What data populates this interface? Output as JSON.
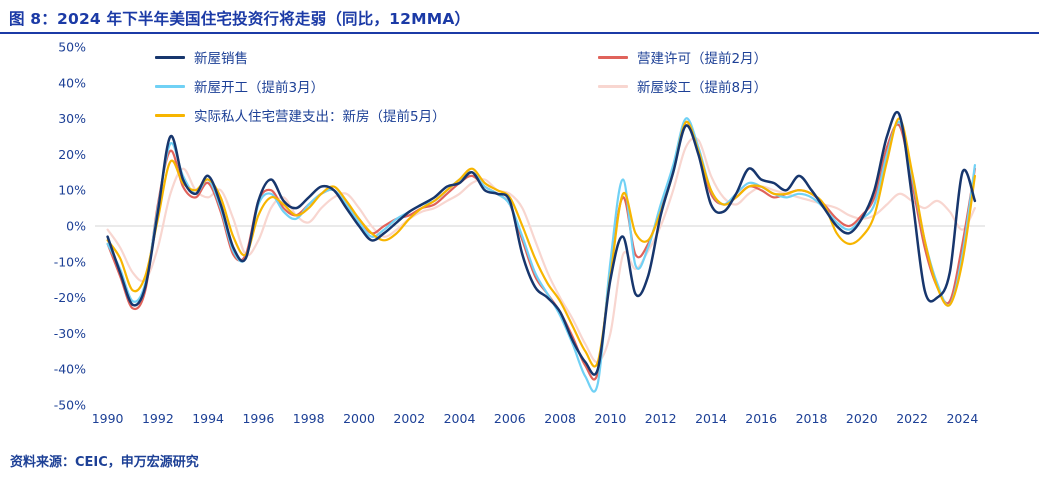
{
  "title": "图 8：2024 年下半年美国住宅投资行将走弱（同比，12MMA）",
  "source": "资料来源：CEIC，申万宏源研究",
  "colors": {
    "title_blue": "#1b3aa6",
    "text_blue": "#1d4096",
    "zero_line": "#d6d6d6",
    "background": "#ffffff"
  },
  "chart_data": {
    "type": "line",
    "title": "2024 年下半年美国住宅投资行将走弱（同比，12MMA）",
    "xlabel": "",
    "ylabel": "",
    "unit": "%",
    "y_tick_suffix": "%",
    "ylim": [
      -50,
      50
    ],
    "y_tick_step": 10,
    "grid": false,
    "zero_line": true,
    "legend_position": "top",
    "x_ticks": [
      1990,
      1992,
      1994,
      1996,
      1998,
      2000,
      2002,
      2004,
      2006,
      2008,
      2010,
      2012,
      2014,
      2016,
      2018,
      2020,
      2022,
      2024
    ],
    "x": [
      1990,
      1990.5,
      1991,
      1991.5,
      1992,
      1992.5,
      1993,
      1993.5,
      1994,
      1994.5,
      1995,
      1995.5,
      1996,
      1996.5,
      1997,
      1997.5,
      1998,
      1998.5,
      1999,
      1999.5,
      2000,
      2000.5,
      2001,
      2001.5,
      2002,
      2002.5,
      2003,
      2003.5,
      2004,
      2004.5,
      2005,
      2005.5,
      2006,
      2006.5,
      2007,
      2007.5,
      2008,
      2008.5,
      2009,
      2009.5,
      2010,
      2010.5,
      2011,
      2011.5,
      2012,
      2012.5,
      2013,
      2013.5,
      2014,
      2014.5,
      2015,
      2015.5,
      2016,
      2016.5,
      2017,
      2017.5,
      2018,
      2018.5,
      2019,
      2019.5,
      2020,
      2020.5,
      2021,
      2021.5,
      2022,
      2022.5,
      2023,
      2023.5,
      2024,
      2024.5
    ],
    "draw_order": [
      3,
      1,
      2,
      4,
      0
    ],
    "legend_columns": [
      [
        0,
        2,
        4
      ],
      [
        1,
        3
      ]
    ],
    "series": [
      {
        "name": "新屋销售",
        "color": "#17366d",
        "width": 2.5,
        "values": [
          -3,
          -13,
          -22,
          -17,
          4,
          25,
          13,
          9,
          14,
          6,
          -6,
          -9,
          7,
          13,
          7,
          5,
          8,
          11,
          10,
          5,
          0,
          -4,
          -2,
          1,
          4,
          6,
          8,
          11,
          12,
          15,
          10,
          9,
          7,
          -8,
          -17,
          -20,
          -24,
          -32,
          -38,
          -40,
          -15,
          -3,
          -19,
          -14,
          3,
          15,
          28,
          20,
          6,
          4,
          9,
          16,
          13,
          12,
          10,
          14,
          10,
          5,
          0,
          -2,
          2,
          10,
          25,
          31,
          8,
          -18,
          -20,
          -13,
          15,
          7
        ]
      },
      {
        "name": "营建许可（提前2月）",
        "color": "#e0635b",
        "width": 2.2,
        "values": [
          -5,
          -14,
          -23,
          -18,
          6,
          21,
          11,
          8,
          12,
          4,
          -8,
          -8,
          7,
          10,
          5,
          3,
          6,
          9,
          10,
          6,
          2,
          -2,
          0,
          2,
          3,
          5,
          6,
          9,
          12,
          14,
          11,
          9,
          6,
          -4,
          -14,
          -19,
          -24,
          -31,
          -39,
          -41,
          -12,
          8,
          -8,
          -5,
          5,
          16,
          29,
          21,
          9,
          6,
          8,
          11,
          10,
          8,
          9,
          10,
          9,
          6,
          2,
          0,
          3,
          8,
          22,
          28,
          12,
          -6,
          -17,
          -21,
          -5,
          16
        ]
      },
      {
        "name": "新屋开工（提前3月）",
        "color": "#70d1f5",
        "width": 2.2,
        "values": [
          -5,
          -12,
          -21,
          -16,
          5,
          23,
          14,
          9,
          13,
          5,
          -7,
          -9,
          6,
          9,
          4,
          2,
          6,
          9,
          10,
          6,
          1,
          -3,
          -1,
          2,
          4,
          6,
          7,
          10,
          13,
          15,
          11,
          9,
          6,
          -3,
          -13,
          -19,
          -25,
          -33,
          -42,
          -44,
          -10,
          13,
          -11,
          -6,
          6,
          17,
          30,
          22,
          10,
          6,
          9,
          12,
          11,
          9,
          8,
          9,
          8,
          5,
          1,
          -1,
          2,
          6,
          20,
          29,
          14,
          -4,
          -16,
          -22,
          -8,
          17
        ]
      },
      {
        "name": "新屋竣工（提前8月）",
        "color": "#f8d6d0",
        "width": 2.2,
        "values": [
          -1,
          -6,
          -13,
          -15,
          -6,
          9,
          16,
          10,
          8,
          10,
          2,
          -8,
          -4,
          5,
          8,
          3,
          1,
          5,
          8,
          9,
          5,
          0,
          -3,
          -1,
          2,
          4,
          5,
          7,
          9,
          12,
          13,
          10,
          9,
          5,
          -4,
          -13,
          -20,
          -26,
          -33,
          -38,
          -30,
          -8,
          -12,
          -7,
          0,
          10,
          22,
          24,
          14,
          8,
          6,
          9,
          11,
          10,
          9,
          8,
          7,
          6,
          5,
          3,
          2,
          3,
          6,
          9,
          7,
          5,
          7,
          4,
          -1,
          5
        ]
      },
      {
        "name": "实际私人住宅营建支出：新房（提前5月）",
        "color": "#f7b500",
        "width": 2.2,
        "values": [
          -4,
          -9,
          -18,
          -14,
          2,
          18,
          12,
          10,
          13,
          8,
          -3,
          -8,
          3,
          8,
          6,
          3,
          5,
          9,
          11,
          7,
          2,
          -2,
          -4,
          -2,
          2,
          5,
          7,
          10,
          13,
          16,
          12,
          10,
          8,
          0,
          -9,
          -16,
          -21,
          -28,
          -35,
          -38,
          -14,
          9,
          -2,
          -4,
          4,
          15,
          29,
          21,
          10,
          6,
          8,
          11,
          11,
          9,
          9,
          10,
          9,
          6,
          -2,
          -5,
          -3,
          3,
          18,
          30,
          15,
          -4,
          -17,
          -22,
          -10,
          14
        ]
      }
    ]
  }
}
